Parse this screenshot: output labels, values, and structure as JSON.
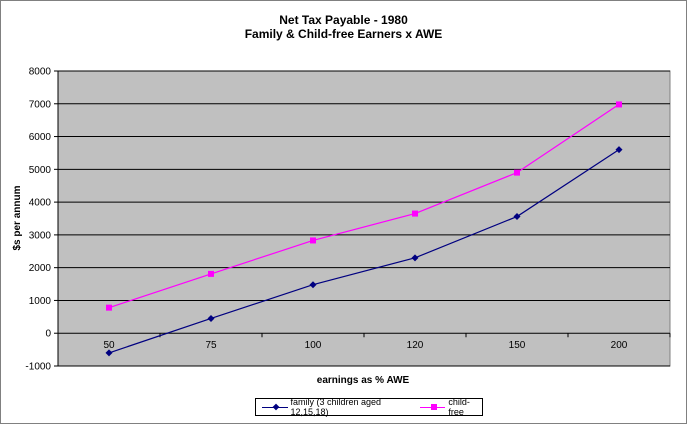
{
  "chart_data": {
    "type": "line",
    "title": "Net Tax Payable - 1980",
    "subtitle": "Family & Child-free Earners x AWE",
    "xlabel": "earnings as % AWE",
    "ylabel": "$s per annum",
    "categories": [
      "50",
      "75",
      "100",
      "120",
      "150",
      "200"
    ],
    "ylim": [
      -1000,
      8000
    ],
    "yticks": [
      "8000",
      "7000",
      "6000",
      "5000",
      "4000",
      "3000",
      "2000",
      "1000",
      "0",
      "-1000"
    ],
    "grid": true,
    "legend_position": "bottom",
    "plot_background": "#c0c0c0",
    "series": [
      {
        "name": "family (3 children aged 12,15,18)",
        "color": "#000080",
        "marker": "diamond",
        "values": [
          -600,
          450,
          1480,
          2300,
          3560,
          5600
        ]
      },
      {
        "name": "child-free",
        "color": "#ff00ff",
        "marker": "square",
        "values": [
          780,
          1810,
          2830,
          3650,
          4900,
          6980
        ]
      }
    ]
  }
}
